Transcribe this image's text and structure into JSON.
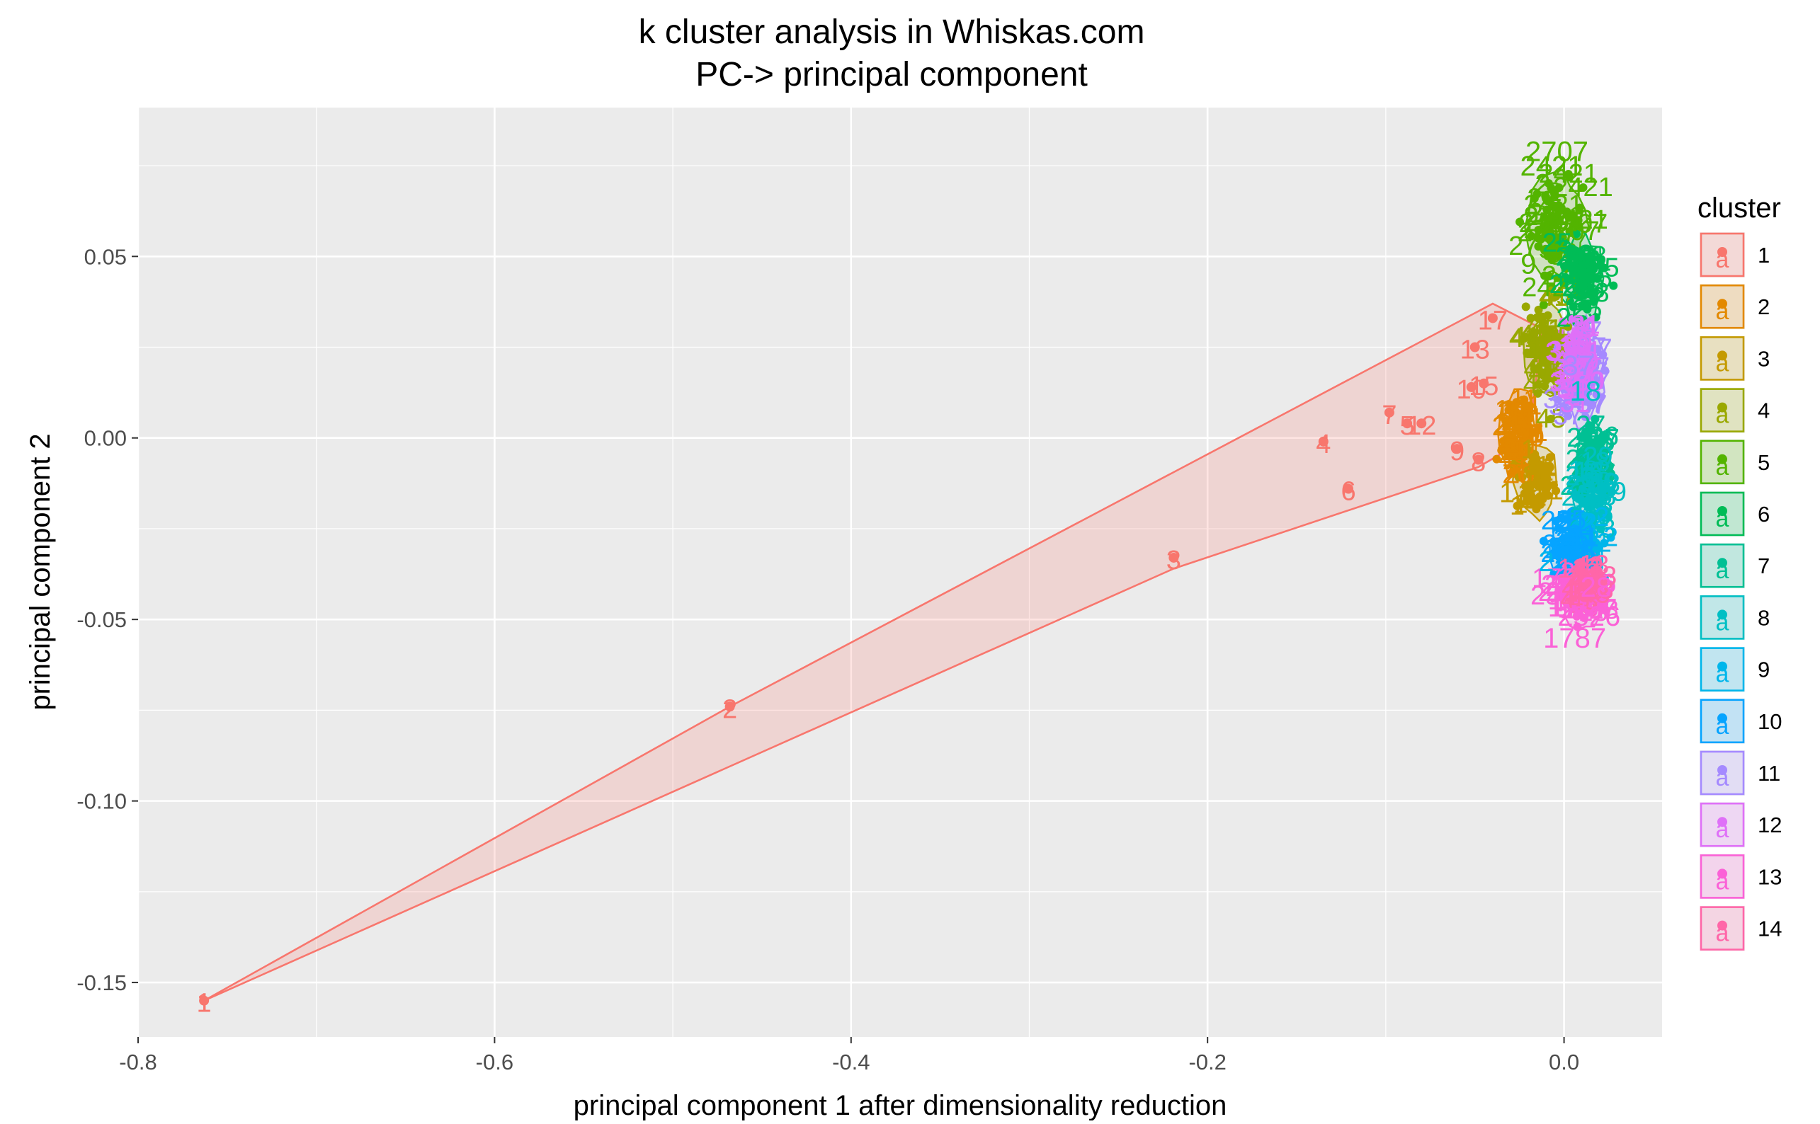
{
  "chart_data": {
    "type": "scatter",
    "title": "k cluster analysis in Whiskas.com",
    "subtitle": "PC-> principal component",
    "xlabel": "principal component 1 after dimensionality reduction",
    "ylabel": "principal component 2",
    "xlim": [
      -0.8,
      0.055
    ],
    "ylim": [
      -0.165,
      0.091
    ],
    "x_ticks": [
      -0.8,
      -0.6,
      -0.4,
      -0.2,
      0.0
    ],
    "x_tick_labels": [
      "-0.8",
      "-0.6",
      "-0.4",
      "-0.2",
      "0.0"
    ],
    "y_ticks": [
      -0.15,
      -0.1,
      -0.05,
      0.0,
      0.05
    ],
    "y_tick_labels": [
      "-0.15",
      "-0.10",
      "-0.05",
      "0.00",
      "0.05"
    ],
    "grid": true,
    "legend": {
      "title": "cluster",
      "position": "right",
      "glyph": "a"
    },
    "clusters": [
      {
        "name": "1",
        "color": "#F8766D"
      },
      {
        "name": "2",
        "color": "#E38900"
      },
      {
        "name": "3",
        "color": "#C49A00"
      },
      {
        "name": "4",
        "color": "#99A800"
      },
      {
        "name": "5",
        "color": "#53B400"
      },
      {
        "name": "6",
        "color": "#00BC56"
      },
      {
        "name": "7",
        "color": "#00C094"
      },
      {
        "name": "8",
        "color": "#00BFC4"
      },
      {
        "name": "9",
        "color": "#00B6EB"
      },
      {
        "name": "10",
        "color": "#06A4FF"
      },
      {
        "name": "11",
        "color": "#A58AFF"
      },
      {
        "name": "12",
        "color": "#DF70F8"
      },
      {
        "name": "13",
        "color": "#FB61D7"
      },
      {
        "name": "14",
        "color": "#FF66A8"
      }
    ],
    "cluster1_points": [
      {
        "x": -0.763,
        "y": -0.155,
        "label": "1"
      },
      {
        "x": -0.468,
        "y": -0.074,
        "label": "2"
      },
      {
        "x": -0.219,
        "y": -0.033,
        "label": "3"
      },
      {
        "x": -0.135,
        "y": -0.001,
        "label": "4"
      },
      {
        "x": -0.121,
        "y": -0.014,
        "label": "6"
      },
      {
        "x": -0.098,
        "y": 0.007,
        "label": "7"
      },
      {
        "x": -0.088,
        "y": 0.004,
        "label": "5"
      },
      {
        "x": -0.08,
        "y": 0.004,
        "label": "12"
      },
      {
        "x": -0.06,
        "y": -0.003,
        "label": "9"
      },
      {
        "x": -0.048,
        "y": -0.006,
        "label": "8"
      },
      {
        "x": -0.052,
        "y": 0.014,
        "label": "10"
      },
      {
        "x": -0.045,
        "y": 0.015,
        "label": "15"
      },
      {
        "x": -0.05,
        "y": 0.025,
        "label": "13"
      },
      {
        "x": -0.04,
        "y": 0.033,
        "label": "17"
      }
    ],
    "cluster1_hull": [
      {
        "x": -0.763,
        "y": -0.155
      },
      {
        "x": -0.468,
        "y": -0.074
      },
      {
        "x": -0.04,
        "y": 0.037
      },
      {
        "x": -0.012,
        "y": 0.03
      },
      {
        "x": -0.02,
        "y": 0.0
      },
      {
        "x": -0.048,
        "y": -0.008
      },
      {
        "x": -0.219,
        "y": -0.036
      }
    ],
    "dense_clusters": [
      {
        "cluster": "2",
        "center": [
          -0.026,
          0.001
        ],
        "spread": [
          0.01,
          0.012
        ],
        "labels": [
          "20",
          "16",
          "14",
          "11",
          "18",
          "19"
        ]
      },
      {
        "cluster": "3",
        "center": [
          -0.016,
          -0.012
        ],
        "spread": [
          0.012,
          0.01
        ],
        "labels": [
          "1",
          "22",
          "23"
        ]
      },
      {
        "cluster": "4",
        "center": [
          -0.01,
          0.024
        ],
        "spread": [
          0.012,
          0.012
        ],
        "labels": [
          "41",
          "45"
        ]
      },
      {
        "cluster": "5",
        "center": [
          -0.004,
          0.058
        ],
        "spread": [
          0.016,
          0.014
        ],
        "labels": [
          "2707",
          "2421",
          "9",
          "2"
        ]
      },
      {
        "cluster": "6",
        "center": [
          0.01,
          0.044
        ],
        "spread": [
          0.012,
          0.012
        ],
        "labels": [
          "25",
          "28"
        ]
      },
      {
        "cluster": "7",
        "center": [
          0.016,
          -0.008
        ],
        "spread": [
          0.01,
          0.012
        ],
        "labels": [
          "26",
          "27"
        ]
      },
      {
        "cluster": "8",
        "center": [
          0.016,
          -0.013
        ],
        "spread": [
          0.01,
          0.012
        ],
        "labels": [
          "18",
          "29"
        ]
      },
      {
        "cluster": "9",
        "center": [
          0.012,
          -0.031
        ],
        "spread": [
          0.01,
          0.01
        ],
        "labels": [
          "2",
          "23",
          "24"
        ]
      },
      {
        "cluster": "10",
        "center": [
          0.004,
          -0.03
        ],
        "spread": [
          0.012,
          0.01
        ],
        "labels": [
          "25",
          "21"
        ]
      },
      {
        "cluster": "11",
        "center": [
          0.01,
          0.018
        ],
        "spread": [
          0.012,
          0.014
        ],
        "labels": [
          "37",
          "18",
          "33"
        ]
      },
      {
        "cluster": "12",
        "center": [
          0.006,
          0.02
        ],
        "spread": [
          0.01,
          0.012
        ],
        "labels": [
          "39",
          "31"
        ]
      },
      {
        "cluster": "13",
        "center": [
          0.01,
          -0.044
        ],
        "spread": [
          0.012,
          0.008
        ],
        "labels": [
          "1787",
          "2526",
          "13",
          "28"
        ]
      },
      {
        "cluster": "14",
        "center": [
          0.012,
          -0.04
        ],
        "spread": [
          0.01,
          0.008
        ],
        "labels": [
          "13",
          "43"
        ]
      }
    ],
    "annotation_labels": [
      {
        "x": -0.004,
        "y": 0.079,
        "text": "2707",
        "cluster": "5"
      },
      {
        "x": -0.007,
        "y": 0.075,
        "text": "2421",
        "cluster": "5"
      },
      {
        "x": -0.012,
        "y": 0.07,
        "text": "2",
        "cluster": "5"
      },
      {
        "x": -0.016,
        "y": 0.062,
        "text": "2",
        "cluster": "5"
      },
      {
        "x": -0.02,
        "y": 0.048,
        "text": "9",
        "cluster": "5"
      },
      {
        "x": 0.008,
        "y": 0.02,
        "text": "37",
        "cluster": "11"
      },
      {
        "x": 0.012,
        "y": 0.013,
        "text": "18",
        "cluster": "8"
      },
      {
        "x": -0.03,
        "y": 0.004,
        "text": "20",
        "cluster": "2"
      },
      {
        "x": -0.032,
        "y": -0.015,
        "text": "1",
        "cluster": "3"
      },
      {
        "x": -0.01,
        "y": -0.034,
        "text": "2",
        "cluster": "9"
      },
      {
        "x": 0.018,
        "y": -0.041,
        "text": "28",
        "cluster": "13"
      },
      {
        "x": 0.014,
        "y": -0.049,
        "text": "2526",
        "cluster": "13"
      },
      {
        "x": 0.006,
        "y": -0.055,
        "text": "1787",
        "cluster": "13"
      }
    ]
  }
}
